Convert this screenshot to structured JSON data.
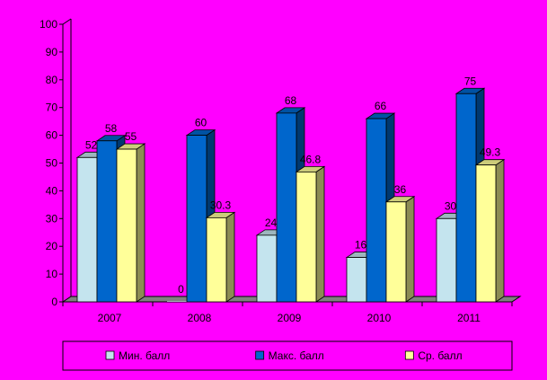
{
  "chart_data": {
    "type": "bar",
    "categories": [
      "2007",
      "2008",
      "2009",
      "2010",
      "2011"
    ],
    "series": [
      {
        "name": "Мин. балл",
        "values": [
          52,
          0,
          24,
          16,
          30
        ],
        "color": "#c4e4ee"
      },
      {
        "name": "Макс. балл",
        "values": [
          58,
          60,
          68,
          66,
          75
        ],
        "color": "#0066cc"
      },
      {
        "name": "Ср. балл",
        "values": [
          55,
          30.3,
          46.8,
          36,
          49.3
        ],
        "color": "#ffff99"
      }
    ],
    "data_labels": [
      [
        "52",
        "0",
        "24",
        "16",
        "30"
      ],
      [
        "58",
        "60",
        "68",
        "66",
        "75"
      ],
      [
        "55",
        "30.3",
        "46.8",
        "36",
        "49.3"
      ]
    ],
    "ylim": [
      0,
      100
    ],
    "y_ticks": [
      "0",
      "10",
      "20",
      "30",
      "40",
      "50",
      "60",
      "70",
      "80",
      "90",
      "100"
    ],
    "grid": false,
    "legend_position": "bottom",
    "colors": {
      "background": "#ff00ff",
      "floor": "#808080"
    }
  }
}
